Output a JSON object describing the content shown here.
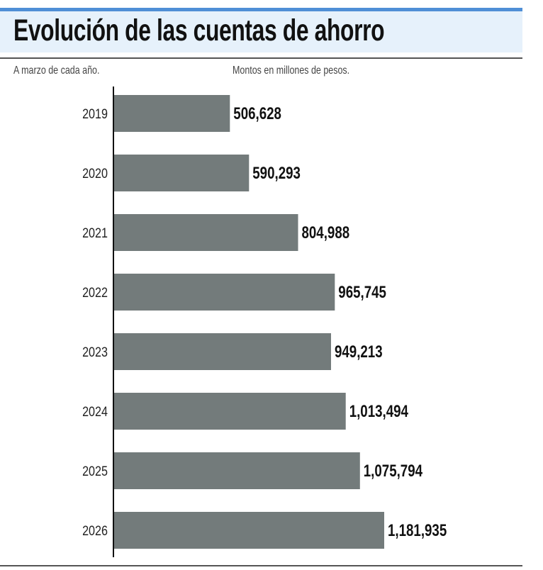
{
  "header": {
    "title": "Evolución de las cuentas de ahorro"
  },
  "notes": {
    "left": "A marzo de cada año.",
    "right": "Montos en millones de pesos."
  },
  "colors": {
    "accent": "#4f8fd6",
    "band": "#e6f1fb",
    "bar": "#737b7b"
  },
  "chart_data": {
    "type": "bar",
    "orientation": "horizontal",
    "title": "Evolución de las cuentas de ahorro",
    "xlabel": "Montos en millones de pesos.",
    "ylabel": "A marzo de cada año.",
    "categories": [
      "2019",
      "2020",
      "2021",
      "2022",
      "2023",
      "2024",
      "2025",
      "2026"
    ],
    "values": [
      506628,
      590293,
      804988,
      965745,
      949213,
      1013494,
      1075794,
      1181935
    ],
    "labels": [
      "506,628",
      "590,293",
      "804,988",
      "965,745",
      "949,213",
      "1,013,494",
      "1,075,794",
      "1,181,935"
    ],
    "xlim": [
      0,
      1181935
    ],
    "grid": false
  }
}
